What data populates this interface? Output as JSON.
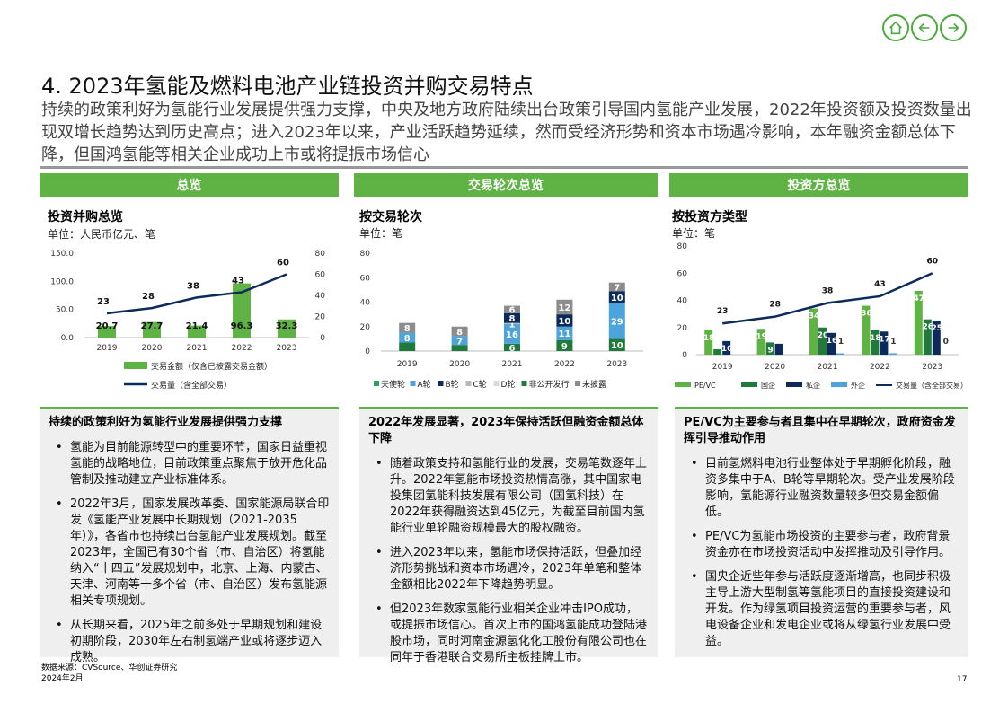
{
  "title": "4. 2023年氢能及燃料电池产业链投资并购交易特点",
  "intro": "持续的政策利好为氢能行业发展提供强力支撑，中央及地方政府陆续出台政策引导国内氢能产业发展，2022年投资额及投资数量出现双增长趋势达到历史高点；进入2023年以来，产业活跃趋势延续，然而受经济形势和资本市场遇冷影响，本年融资金额总体下降，但国鸿氢能等相关企业成功上市或将提振市场信心",
  "nav": {
    "home_icon": "home-icon",
    "back_icon": "arrow-left-icon",
    "forward_icon": "arrow-right-icon"
  },
  "colors": {
    "accent": "#5fb244",
    "navy": "#0d2a5c",
    "blue": "#4da3dc",
    "gray": "#8c8c8c",
    "darkgreen": "#1f7a3b"
  },
  "panels": [
    {
      "header": "总览",
      "chart_title": "投资并购总览",
      "unit": "单位：人民币亿元、笔"
    },
    {
      "header": "交易轮次总览",
      "chart_title": "按交易轮次",
      "unit": "单位：笔"
    },
    {
      "header": "投资方总览",
      "chart_title": "按投资方类型",
      "unit": "单位：笔"
    }
  ],
  "chart_data": [
    {
      "type": "bar",
      "title": "投资并购总览",
      "categories": [
        "2019",
        "2020",
        "2021",
        "2022",
        "2023"
      ],
      "series": [
        {
          "name": "交易金额（仅含已披露交易金额）",
          "kind": "bar",
          "axis": "left",
          "values": [
            20.7,
            27.7,
            21.4,
            96.3,
            32.3
          ],
          "labels": [
            "20.7",
            "27.7",
            "21.4",
            "96.3",
            "32.3"
          ]
        },
        {
          "name": "交易量（含全部交易）",
          "kind": "line",
          "axis": "right",
          "values": [
            23,
            28,
            38,
            43,
            60
          ],
          "labels": [
            "23",
            "28",
            "38",
            "43",
            "60"
          ]
        }
      ],
      "ylim_left": [
        0,
        150
      ],
      "yticks_left": [
        "0.0",
        "50.0",
        "100.0",
        "150.0"
      ],
      "ylim_right": [
        0,
        80
      ],
      "yticks_right": [
        "0",
        "20",
        "40",
        "60",
        "80"
      ],
      "legend": "bottom"
    },
    {
      "type": "bar",
      "stacked": true,
      "title": "按交易轮次",
      "categories": [
        "2019",
        "2020",
        "2021",
        "2022",
        "2023"
      ],
      "series": [
        {
          "name": "天使轮",
          "values": [
            0,
            0,
            0,
            0,
            0
          ],
          "labels": [
            "",
            "",
            "",
            "",
            ""
          ]
        },
        {
          "name": "A轮",
          "values": [
            8,
            7,
            16,
            11,
            29
          ],
          "labels": [
            "8",
            "7",
            "16",
            "11",
            "29"
          ]
        },
        {
          "name": "B轮",
          "values": [
            0,
            0,
            8,
            10,
            10
          ],
          "labels": [
            "",
            "",
            "8",
            "10",
            "10"
          ]
        },
        {
          "name": "C轮",
          "values": [
            0,
            0,
            1,
            0,
            0
          ],
          "labels": [
            "",
            "",
            "1",
            "",
            ""
          ]
        },
        {
          "name": "D轮",
          "values": [
            0,
            0,
            0,
            0,
            0
          ],
          "labels": [
            "",
            "",
            "",
            "",
            ""
          ]
        },
        {
          "name": "非公开发行",
          "values": [
            7,
            5,
            6,
            9,
            10
          ],
          "labels": [
            "",
            "",
            "6",
            "9",
            "10"
          ]
        },
        {
          "name": "未披露",
          "values": [
            8,
            8,
            6,
            12,
            7
          ],
          "labels": [
            "8",
            "8",
            "6",
            "12",
            "7"
          ]
        }
      ],
      "ylim": [
        0,
        80
      ],
      "yticks": [
        "0",
        "20",
        "40",
        "60",
        "80"
      ],
      "legend": "bottom"
    },
    {
      "type": "bar",
      "title": "按投资方类型",
      "categories": [
        "2019",
        "2020",
        "2021",
        "2022",
        "2023"
      ],
      "series": [
        {
          "name": "PE/VC",
          "kind": "bar",
          "values": [
            18,
            19,
            34,
            36,
            47
          ],
          "labels": [
            "18",
            "19",
            "34",
            "36",
            "47"
          ]
        },
        {
          "name": "国企",
          "kind": "bar",
          "values": [
            4,
            9,
            20,
            18,
            26
          ],
          "labels": [
            "",
            "9",
            "20",
            "18",
            "26"
          ]
        },
        {
          "name": "私企",
          "kind": "bar",
          "values": [
            10,
            8,
            16,
            17,
            25
          ],
          "labels": [
            "10",
            "",
            "16",
            "17",
            "25"
          ]
        },
        {
          "name": "外企",
          "kind": "bar",
          "values": [
            0,
            0,
            1,
            1,
            0
          ],
          "labels": [
            "",
            "",
            "1",
            "1",
            "0"
          ]
        },
        {
          "name": "交易量（含全部交易）",
          "kind": "line",
          "values": [
            23,
            28,
            38,
            43,
            60
          ],
          "labels": [
            "23",
            "28",
            "38",
            "43",
            "60"
          ]
        }
      ],
      "ylim": [
        0,
        80
      ],
      "yticks": [
        "0",
        "20",
        "40",
        "60",
        "80"
      ],
      "legend": "bottom"
    }
  ],
  "boxes": [
    {
      "title": "持续的政策利好为氢能行业发展提供强力支撑",
      "bullets": [
        "氢能为目前能源转型中的重要环节，国家日益重视氢能的战略地位，目前政策重点聚焦于放开危化品管制及推动建立产业标准体系。",
        "2022年3月，国家发展改革委、国家能源局联合印发《氢能产业发展中长期规划（2021-2035年）》，各省市也持续出台氢能产业发展规划。截至2023年，全国已有30个省（市、自治区）将氢能纳入“十四五”发展规划中，北京、上海、内蒙古、天津、河南等十多个省（市、自治区）发布氢能源相关专项规划。",
        "从长期来看，2025年之前多处于早期规划和建设初期阶段，2030年左右制氢端产业或将逐步迈入成熟。"
      ]
    },
    {
      "title": "2022年发展显著，2023年保持活跃但融资金额总体下降",
      "bullets": [
        "随着政策支持和氢能行业的发展，交易笔数逐年上升。2022年氢能市场投资热情高涨，其中国家电投集团氢能科技发展有限公司（国氢科技）在2022年获得融资达到45亿元，为截至目前国内氢能行业单轮融资规模最大的股权融资。",
        "进入2023年以来，氢能市场保持活跃，但叠加经济形势挑战和资本市场遇冷，2023年单笔和整体金额相比2022年下降趋势明显。",
        "但2023年数家氢能行业相关企业冲击IPO成功，或提振市场信心。首次上市的国鸿氢能成功登陆港股市场，同时河南金源氢化化工股份有限公司也在同年于香港联合交易所主板挂牌上市。"
      ]
    },
    {
      "title": "PE/VC为主要参与者且集中在早期轮次，政府资金发挥引导推动作用",
      "bullets": [
        "目前氢燃料电池行业整体处于早期孵化阶段，融资多集中于A、B轮等早期轮次。受产业发展阶段影响，氢能源行业融资数量较多但交易金额偏低。",
        "PE/VC为氢能市场投资的主要参与者，政府背景资金亦在市场投资活动中发挥推动及引导作用。",
        "国央企近些年参与活跃度逐渐增高，也同步积极主导上游大型制氢等氢能项目的直接投资建设和开发。作为绿氢项目投资运营的重要参与者，风电设备企业和发电企业或将从绿氢行业发展中受益。"
      ]
    }
  ],
  "source_line1": "数据来源：CVSource、华创证券研究",
  "source_line2": "2024年2月",
  "page_number": "17"
}
